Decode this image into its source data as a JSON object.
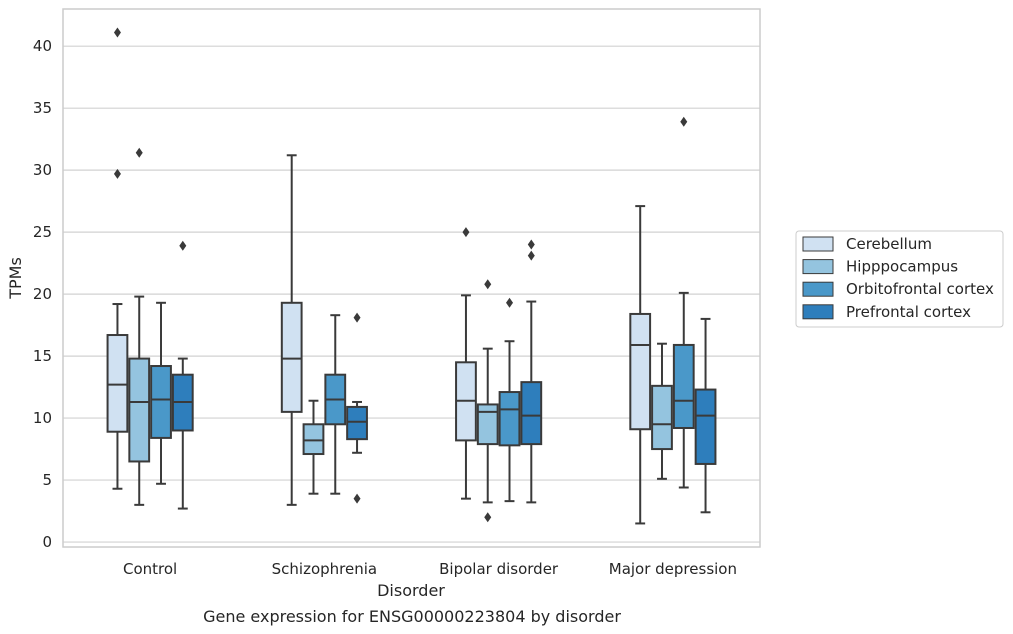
{
  "chart_data": {
    "type": "box",
    "xlabel": "Disorder",
    "ylabel": "TPMs",
    "caption": "Gene expression for ENSG00000223804 by disorder",
    "ylim": [
      -0.4,
      43
    ],
    "yticks": [
      "0",
      "5",
      "10",
      "15",
      "20",
      "25",
      "30",
      "35",
      "40"
    ],
    "grid": true,
    "legend_position": "right",
    "categories": [
      "Control",
      "Schizophrenia",
      "Bipolar disorder",
      "Major depression"
    ],
    "series": [
      {
        "name": "Cerebellum",
        "color": "#d0e1f2",
        "boxes": [
          {
            "whislo": 4.3,
            "q1": 8.9,
            "med": 12.7,
            "q3": 16.7,
            "whishi": 19.2,
            "fliers": [
              29.7,
              41.1
            ]
          },
          {
            "whislo": 3.0,
            "q1": 10.5,
            "med": 14.8,
            "q3": 19.3,
            "whishi": 31.2,
            "fliers": []
          },
          {
            "whislo": 3.5,
            "q1": 8.2,
            "med": 11.4,
            "q3": 14.5,
            "whishi": 19.9,
            "fliers": [
              25.0
            ]
          },
          {
            "whislo": 1.5,
            "q1": 9.1,
            "med": 15.9,
            "q3": 18.4,
            "whishi": 27.1,
            "fliers": []
          }
        ]
      },
      {
        "name": "Hipppocampus",
        "color": "#94c4df",
        "boxes": [
          {
            "whislo": 3.0,
            "q1": 6.5,
            "med": 11.3,
            "q3": 14.8,
            "whishi": 19.8,
            "fliers": [
              31.4
            ]
          },
          {
            "whislo": 3.9,
            "q1": 7.1,
            "med": 8.2,
            "q3": 9.5,
            "whishi": 11.4,
            "fliers": []
          },
          {
            "whislo": 3.2,
            "q1": 7.9,
            "med": 10.5,
            "q3": 11.1,
            "whishi": 15.6,
            "fliers": [
              2.0,
              20.8
            ]
          },
          {
            "whislo": 5.1,
            "q1": 7.5,
            "med": 9.5,
            "q3": 12.6,
            "whishi": 16.0,
            "fliers": []
          }
        ]
      },
      {
        "name": "Orbitofrontal cortex",
        "color": "#4a98c9",
        "boxes": [
          {
            "whislo": 4.7,
            "q1": 8.4,
            "med": 11.5,
            "q3": 14.2,
            "whishi": 19.3,
            "fliers": []
          },
          {
            "whislo": 3.9,
            "q1": 9.5,
            "med": 11.5,
            "q3": 13.5,
            "whishi": 18.3,
            "fliers": []
          },
          {
            "whislo": 3.3,
            "q1": 7.8,
            "med": 10.7,
            "q3": 12.1,
            "whishi": 16.2,
            "fliers": [
              19.3
            ]
          },
          {
            "whislo": 4.4,
            "q1": 9.2,
            "med": 11.4,
            "q3": 15.9,
            "whishi": 20.1,
            "fliers": [
              33.9
            ]
          }
        ]
      },
      {
        "name": "Prefrontal cortex",
        "color": "#2e7ebc",
        "boxes": [
          {
            "whislo": 2.7,
            "q1": 9.0,
            "med": 11.3,
            "q3": 13.5,
            "whishi": 14.8,
            "fliers": [
              23.9
            ]
          },
          {
            "whislo": 7.2,
            "q1": 8.3,
            "med": 9.7,
            "q3": 10.9,
            "whishi": 11.3,
            "fliers": [
              3.5,
              18.1
            ]
          },
          {
            "whislo": 3.2,
            "q1": 7.9,
            "med": 10.2,
            "q3": 12.9,
            "whishi": 19.4,
            "fliers": [
              23.1,
              24.0
            ]
          },
          {
            "whislo": 2.4,
            "q1": 6.3,
            "med": 10.2,
            "q3": 12.3,
            "whishi": 18.0,
            "fliers": []
          }
        ]
      }
    ]
  }
}
